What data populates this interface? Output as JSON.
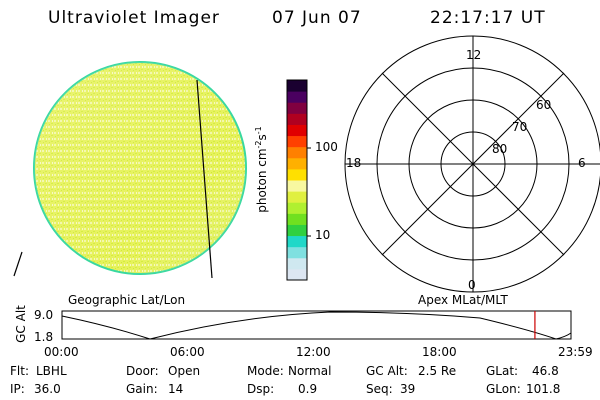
{
  "header": {
    "instrument": "Ultraviolet Imager",
    "date": "07 Jun 07",
    "time": "22:17:17 UT"
  },
  "colorbar": {
    "unit_label": "photon cm",
    "unit_sup1": "-2",
    "unit_mid": "s",
    "unit_sup2": "-1",
    "ticks": [
      "100",
      "10"
    ],
    "colors": [
      "#dde6f2",
      "#cfe8f0",
      "#7fe0e0",
      "#20d8c8",
      "#30d040",
      "#70e020",
      "#b0f030",
      "#e0f040",
      "#f8f8a0",
      "#ffe000",
      "#ffb000",
      "#ff8000",
      "#ff4000",
      "#e00000",
      "#b00020",
      "#800040",
      "#4a0060",
      "#1a0030"
    ]
  },
  "left_map": {
    "label": "Geographic Lat/Lon",
    "disk_color": "#e6f25a",
    "rim_color": "#38d8a0"
  },
  "polar_plot": {
    "label": "Apex MLat/MLT",
    "mlt_labels": {
      "top": "12",
      "bottom": "0",
      "left": "18",
      "right": "6"
    },
    "lat_labels": [
      "60",
      "70",
      "80"
    ]
  },
  "timeline": {
    "ylabel": "GC Alt",
    "yticks": [
      "9.0",
      "1.8"
    ],
    "xticks": [
      "00:00",
      "06:00",
      "12:00",
      "18:00",
      "23:59"
    ],
    "marker_time": "22:17",
    "marker_color": "#cc0000"
  },
  "info": {
    "filter_label": "Flt:",
    "filter_value": "LBHL",
    "ip_label": "IP:",
    "ip_value": "36.0",
    "door_label": "Door:",
    "door_value": "Open",
    "gain_label": "Gain:",
    "gain_value": "14",
    "mode_label": "Mode:",
    "mode_value": "Normal",
    "dsp_label": "Dsp:",
    "dsp_value": "0.9",
    "gcalt_label": "GC Alt:",
    "gcalt_value": "2.5 Re",
    "seq_label": "Seq:",
    "seq_value": "39",
    "glat_label": "GLat:",
    "glat_value": "46.8",
    "glon_label": "GLon:",
    "glon_value": "101.8"
  }
}
